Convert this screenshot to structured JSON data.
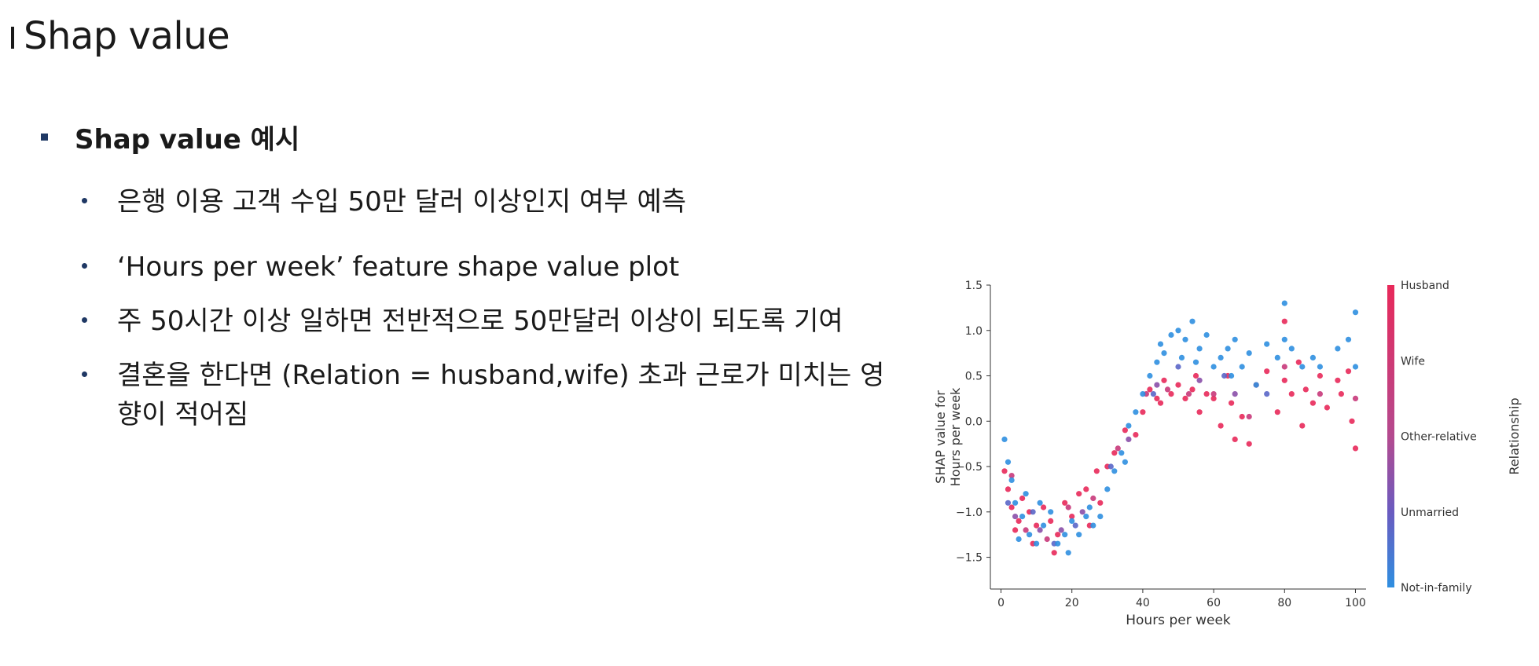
{
  "slide": {
    "title": "Shap value",
    "section": "Shap value 예시",
    "bullets": [
      "은행 이용 고객 수입 50만 달러 이상인지 여부 예측",
      "‘Hours per week’ feature shape value plot",
      "주 50시간 이상 일하면 전반적으로 50만달러 이상이 되도록 기여",
      "결혼을 한다면 (Relation = husband,wife) 초과 근로가 미치는 영향이 적어짐"
    ]
  },
  "colors": {
    "bullet": "#1f3864",
    "husband": "#e8295a",
    "not_in_family": "#2f8fe0"
  },
  "chart_data": {
    "type": "scatter",
    "xlabel": "Hours per week",
    "ylabel": "SHAP value for Hours per week",
    "ylabel_lines": [
      "SHAP value for",
      "Hours per week"
    ],
    "xlim": [
      -3,
      103
    ],
    "ylim": [
      -1.85,
      1.5
    ],
    "xticks": [
      0,
      20,
      40,
      60,
      80,
      100
    ],
    "yticks": [
      -1.5,
      -1.0,
      -0.5,
      0.0,
      0.5,
      1.0,
      1.5
    ],
    "xtick_labels": [
      "0",
      "20",
      "40",
      "60",
      "80",
      "100"
    ],
    "ytick_labels": [
      "−1.5",
      "−1.0",
      "−0.5",
      "0.0",
      "0.5",
      "1.0",
      "1.5"
    ],
    "colorbar": {
      "label": "Relationship",
      "labels": [
        "Husband",
        "Wife",
        "Other-relative",
        "Unmarried",
        "Not-in-family"
      ]
    },
    "series": [
      {
        "name": "Husband",
        "points": [
          [
            1,
            -0.55
          ],
          [
            2,
            -0.75
          ],
          [
            3,
            -0.95
          ],
          [
            4,
            -1.2
          ],
          [
            5,
            -1.1
          ],
          [
            6,
            -0.85
          ],
          [
            8,
            -1.0
          ],
          [
            9,
            -1.35
          ],
          [
            10,
            -1.15
          ],
          [
            12,
            -0.95
          ],
          [
            14,
            -1.1
          ],
          [
            15,
            -1.45
          ],
          [
            16,
            -1.25
          ],
          [
            18,
            -0.9
          ],
          [
            20,
            -1.05
          ],
          [
            22,
            -0.8
          ],
          [
            24,
            -0.75
          ],
          [
            25,
            -1.15
          ],
          [
            27,
            -0.55
          ],
          [
            28,
            -0.9
          ],
          [
            30,
            -0.5
          ],
          [
            32,
            -0.35
          ],
          [
            35,
            -0.1
          ],
          [
            38,
            -0.15
          ],
          [
            40,
            0.1
          ],
          [
            42,
            0.35
          ],
          [
            44,
            0.25
          ],
          [
            45,
            0.2
          ],
          [
            46,
            0.45
          ],
          [
            48,
            0.3
          ],
          [
            50,
            0.4
          ],
          [
            52,
            0.25
          ],
          [
            54,
            0.35
          ],
          [
            55,
            0.5
          ],
          [
            56,
            0.1
          ],
          [
            58,
            0.3
          ],
          [
            60,
            0.25
          ],
          [
            62,
            -0.05
          ],
          [
            64,
            0.5
          ],
          [
            65,
            0.2
          ],
          [
            66,
            -0.2
          ],
          [
            68,
            0.05
          ],
          [
            70,
            -0.25
          ],
          [
            72,
            0.4
          ],
          [
            75,
            0.55
          ],
          [
            78,
            0.1
          ],
          [
            80,
            0.45
          ],
          [
            80,
            1.1
          ],
          [
            82,
            0.3
          ],
          [
            84,
            0.65
          ],
          [
            85,
            -0.05
          ],
          [
            86,
            0.35
          ],
          [
            88,
            0.2
          ],
          [
            90,
            0.5
          ],
          [
            92,
            0.15
          ],
          [
            95,
            0.45
          ],
          [
            96,
            0.3
          ],
          [
            98,
            0.55
          ],
          [
            99,
            0.0
          ],
          [
            100,
            -0.3
          ]
        ]
      },
      {
        "name": "Wife",
        "points": [
          [
            3,
            -0.6
          ],
          [
            7,
            -1.2
          ],
          [
            13,
            -1.3
          ],
          [
            19,
            -0.95
          ],
          [
            26,
            -0.85
          ],
          [
            33,
            -0.3
          ],
          [
            41,
            0.3
          ],
          [
            47,
            0.35
          ],
          [
            53,
            0.3
          ],
          [
            60,
            0.3
          ],
          [
            70,
            0.05
          ],
          [
            80,
            0.6
          ],
          [
            90,
            0.3
          ],
          [
            100,
            0.25
          ]
        ]
      },
      {
        "name": "Other-relative",
        "points": [
          [
            4,
            -1.05
          ],
          [
            11,
            -1.2
          ],
          [
            17,
            -1.2
          ],
          [
            23,
            -1.0
          ],
          [
            36,
            -0.2
          ],
          [
            44,
            0.4
          ],
          [
            56,
            0.45
          ],
          [
            66,
            0.3
          ]
        ]
      },
      {
        "name": "Unmarried",
        "points": [
          [
            2,
            -0.9
          ],
          [
            9,
            -1.0
          ],
          [
            15,
            -1.35
          ],
          [
            21,
            -1.15
          ],
          [
            31,
            -0.5
          ],
          [
            43,
            0.3
          ],
          [
            50,
            0.6
          ],
          [
            63,
            0.5
          ],
          [
            75,
            0.3
          ]
        ]
      },
      {
        "name": "Not-in-family",
        "points": [
          [
            1,
            -0.2
          ],
          [
            2,
            -0.45
          ],
          [
            3,
            -0.65
          ],
          [
            4,
            -0.9
          ],
          [
            5,
            -1.3
          ],
          [
            6,
            -1.05
          ],
          [
            7,
            -0.8
          ],
          [
            8,
            -1.25
          ],
          [
            10,
            -1.35
          ],
          [
            11,
            -0.9
          ],
          [
            12,
            -1.15
          ],
          [
            14,
            -1.0
          ],
          [
            16,
            -1.35
          ],
          [
            18,
            -1.25
          ],
          [
            19,
            -1.45
          ],
          [
            20,
            -1.1
          ],
          [
            22,
            -1.25
          ],
          [
            24,
            -1.05
          ],
          [
            25,
            -0.95
          ],
          [
            26,
            -1.15
          ],
          [
            28,
            -1.05
          ],
          [
            30,
            -0.75
          ],
          [
            32,
            -0.55
          ],
          [
            34,
            -0.35
          ],
          [
            35,
            -0.45
          ],
          [
            36,
            -0.05
          ],
          [
            38,
            0.1
          ],
          [
            40,
            0.3
          ],
          [
            42,
            0.5
          ],
          [
            44,
            0.65
          ],
          [
            45,
            0.85
          ],
          [
            46,
            0.75
          ],
          [
            48,
            0.95
          ],
          [
            50,
            1.0
          ],
          [
            51,
            0.7
          ],
          [
            52,
            0.9
          ],
          [
            54,
            1.1
          ],
          [
            55,
            0.65
          ],
          [
            56,
            0.8
          ],
          [
            58,
            0.95
          ],
          [
            60,
            0.6
          ],
          [
            62,
            0.7
          ],
          [
            64,
            0.8
          ],
          [
            65,
            0.5
          ],
          [
            66,
            0.9
          ],
          [
            68,
            0.6
          ],
          [
            70,
            0.75
          ],
          [
            72,
            0.4
          ],
          [
            75,
            0.85
          ],
          [
            78,
            0.7
          ],
          [
            80,
            1.3
          ],
          [
            80,
            0.9
          ],
          [
            82,
            0.8
          ],
          [
            85,
            0.6
          ],
          [
            88,
            0.7
          ],
          [
            90,
            0.6
          ],
          [
            95,
            0.8
          ],
          [
            98,
            0.9
          ],
          [
            100,
            1.2
          ],
          [
            100,
            0.6
          ]
        ]
      }
    ]
  }
}
